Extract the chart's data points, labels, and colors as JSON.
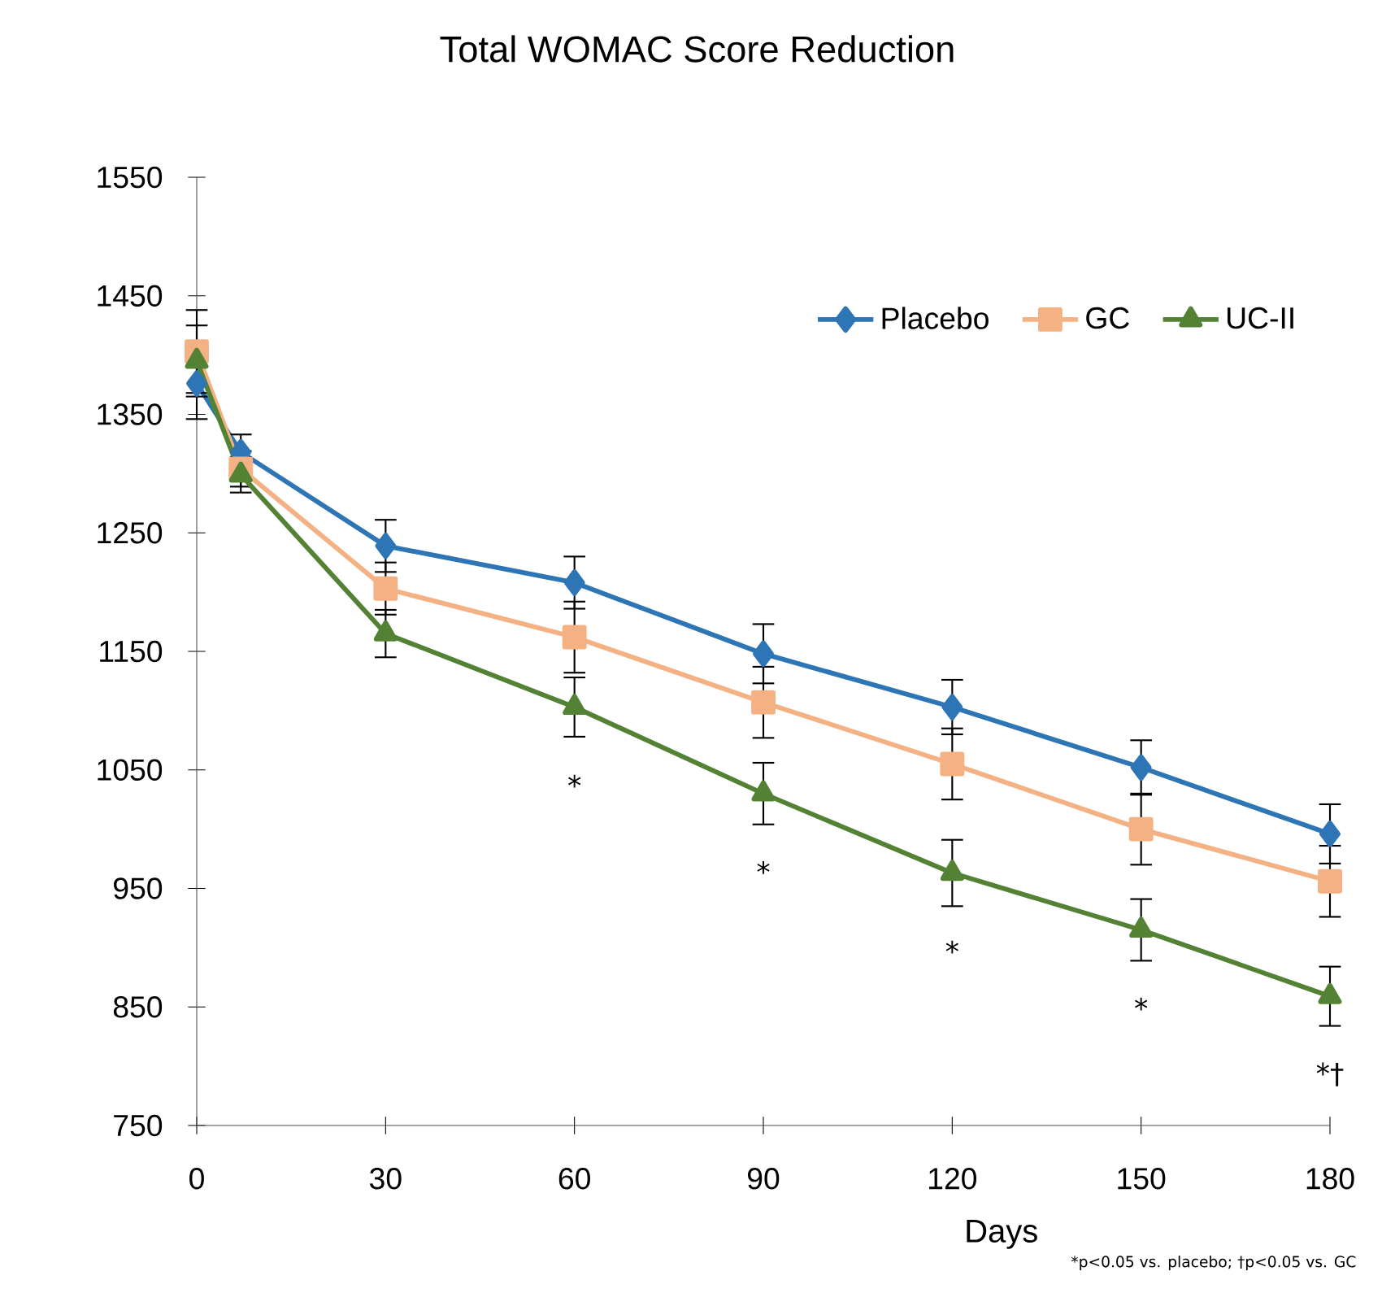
{
  "chart_data": {
    "type": "line",
    "title": "Total WOMAC Score Reduction",
    "xlabel": "Days",
    "x": [
      0,
      7,
      30,
      60,
      90,
      120,
      150,
      180
    ],
    "xlim": [
      0,
      180
    ],
    "xticks": [
      0,
      30,
      60,
      90,
      120,
      150,
      180
    ],
    "ylim": [
      750,
      1550
    ],
    "yticks": [
      750,
      850,
      950,
      1050,
      1150,
      1250,
      1350,
      1450,
      1550
    ],
    "series": [
      {
        "name": "Placebo",
        "color": "#2e75b6",
        "marker": "diamond",
        "values": [
          1376,
          1318,
          1239,
          1208,
          1148,
          1103,
          1052,
          996
        ],
        "errors": [
          30,
          15,
          22,
          22,
          25,
          23,
          23,
          25
        ]
      },
      {
        "name": "GC",
        "color": "#f4b183",
        "marker": "square",
        "values": [
          1403,
          1304,
          1203,
          1162,
          1107,
          1055,
          1000,
          956
        ],
        "errors": [
          35,
          15,
          22,
          30,
          30,
          30,
          30,
          30
        ]
      },
      {
        "name": "UC-II",
        "color": "#548235",
        "marker": "triangle",
        "values": [
          1395,
          1299,
          1165,
          1103,
          1030,
          963,
          915,
          859
        ],
        "errors": [
          30,
          15,
          20,
          25,
          26,
          28,
          26,
          25
        ]
      }
    ],
    "legend": "top right",
    "grid": false,
    "line_style": "solid",
    "annotations": [
      {
        "text": "*",
        "x": 60,
        "y": 1103
      },
      {
        "text": "*",
        "x": 90,
        "y": 1030
      },
      {
        "text": "*",
        "x": 120,
        "y": 963
      },
      {
        "text": "*",
        "x": 150,
        "y": 915
      },
      {
        "text": "*†",
        "x": 180,
        "y": 859
      },
      "*p<0.05 vs. placebo; †p<0.05 vs. GC"
    ]
  }
}
